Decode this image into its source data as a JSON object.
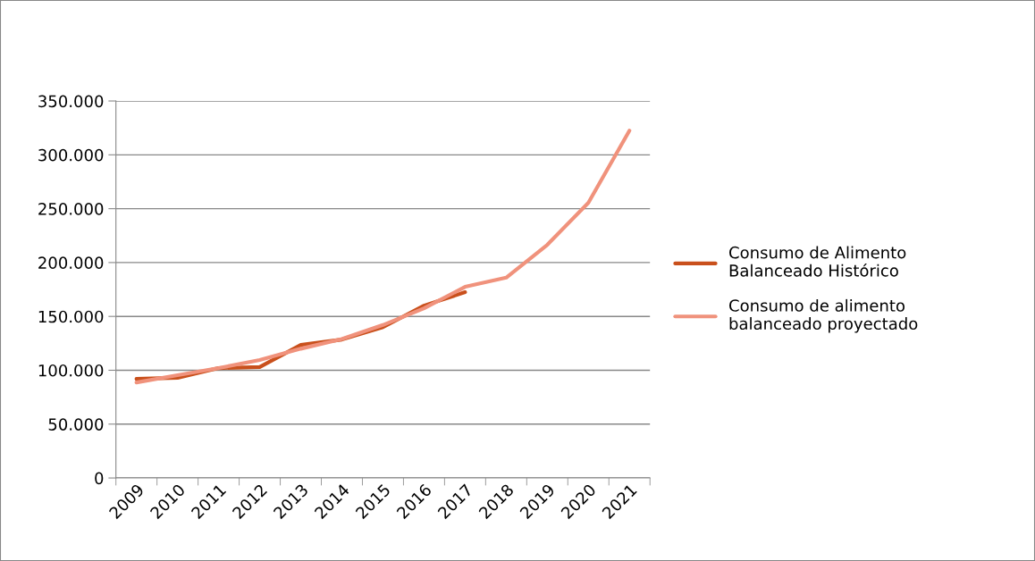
{
  "chart_data": {
    "type": "line",
    "categories": [
      "2009",
      "2010",
      "2011",
      "2012",
      "2013",
      "2014",
      "2015",
      "2016",
      "2017",
      "2018",
      "2019",
      "2020",
      "2021"
    ],
    "series": [
      {
        "name": "Consumo de Alimento Balanceado Histórico",
        "color": "#c9501c",
        "values": [
          92000,
          93000,
          102000,
          103000,
          123500,
          128500,
          140000,
          160000,
          172500,
          null,
          null,
          null,
          null
        ]
      },
      {
        "name": "Consumo de alimento balanceado proyectado",
        "color": "#f0927c",
        "values": [
          88700,
          95400,
          102000,
          109500,
          120000,
          129000,
          142000,
          157500,
          177500,
          186000,
          216500,
          255500,
          322500
        ]
      }
    ],
    "ylim": [
      0,
      350000
    ],
    "yticks": [
      0,
      {
        "value": 50000,
        "label": "50.000"
      },
      {
        "value": 100000,
        "label": "100.000"
      },
      {
        "value": 150000,
        "label": "150.000"
      },
      {
        "value": 200000,
        "label": "200.000"
      },
      {
        "value": 250000,
        "label": "250.000"
      },
      {
        "value": 300000,
        "label": "300.000"
      },
      {
        "value": 350000,
        "label": "350.000"
      }
    ],
    "grid": "y",
    "legend": "right",
    "marker": "none",
    "line_style": "solid"
  }
}
